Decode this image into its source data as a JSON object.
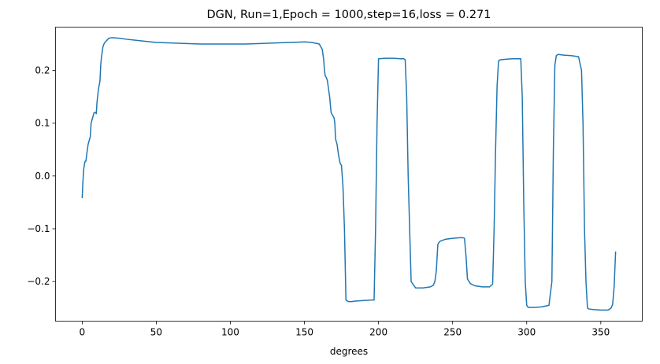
{
  "chart_data": {
    "type": "line",
    "title": "DGN, Run=1,Epoch = 1000,step=16,loss = 0.271",
    "xlabel": "degrees",
    "ylabel": "",
    "xlim": [
      -18,
      378
    ],
    "ylim": [
      -0.275,
      0.282
    ],
    "grid": false,
    "x_ticks": [
      0,
      50,
      100,
      150,
      200,
      250,
      300,
      350
    ],
    "x_tick_labels": [
      "0",
      "50",
      "100",
      "150",
      "200",
      "250",
      "300",
      "350"
    ],
    "y_ticks": [
      -0.2,
      -0.1,
      0.0,
      0.1,
      0.2
    ],
    "y_tick_labels": [
      "−0.2",
      "−0.1",
      "0.0",
      "0.1",
      "0.2"
    ],
    "series": [
      {
        "color": "#1f77b4",
        "x": [
          0,
          0.5,
          1,
          1.5,
          2,
          2.5,
          3,
          4,
          5,
          5.5,
          6,
          7,
          8,
          9,
          9.5,
          10,
          11,
          12,
          12.5,
          13,
          14,
          15,
          16,
          17,
          18,
          20,
          25,
          30,
          40,
          50,
          60,
          70,
          80,
          90,
          100,
          110,
          120,
          130,
          140,
          150,
          155,
          160,
          162,
          163,
          163.5,
          164,
          165,
          165.5,
          166,
          167,
          168,
          169,
          170,
          170.5,
          171,
          172,
          173,
          174,
          174.5,
          175,
          176,
          177,
          178,
          179,
          180,
          180.5,
          181,
          182,
          184,
          190,
          195,
          197,
          198,
          199,
          200,
          205,
          210,
          215,
          217,
          218,
          219,
          220,
          221,
          222,
          225,
          230,
          235,
          237,
          238,
          239,
          240,
          241,
          242,
          245,
          250,
          255,
          257,
          258,
          259,
          260,
          262,
          265,
          270,
          275,
          277,
          278,
          279,
          280,
          281,
          282,
          285,
          290,
          295,
          296,
          297,
          298,
          299,
          300,
          301,
          302,
          305,
          310,
          315,
          317,
          318,
          319,
          320,
          321,
          322,
          325,
          330,
          335,
          337,
          338,
          339,
          340,
          341,
          342,
          345,
          350,
          355,
          357,
          358,
          359,
          360
        ],
        "y": [
          -0.042,
          -0.01,
          0.012,
          0.022,
          0.028,
          0.028,
          0.04,
          0.06,
          0.07,
          0.075,
          0.1,
          0.11,
          0.12,
          0.12,
          0.118,
          0.14,
          0.165,
          0.18,
          0.21,
          0.225,
          0.245,
          0.252,
          0.255,
          0.258,
          0.261,
          0.262,
          0.261,
          0.259,
          0.256,
          0.253,
          0.252,
          0.251,
          0.25,
          0.25,
          0.25,
          0.25,
          0.251,
          0.252,
          0.253,
          0.254,
          0.253,
          0.25,
          0.24,
          0.22,
          0.2,
          0.19,
          0.185,
          0.18,
          0.17,
          0.15,
          0.12,
          0.115,
          0.11,
          0.1,
          0.07,
          0.06,
          0.04,
          0.025,
          0.022,
          0.02,
          -0.02,
          -0.1,
          -0.235,
          -0.237,
          -0.238,
          -0.238,
          -0.238,
          -0.238,
          -0.237,
          -0.236,
          -0.235,
          -0.235,
          -0.1,
          0.1,
          0.222,
          0.223,
          0.223,
          0.222,
          0.222,
          0.22,
          0.15,
          0.0,
          -0.1,
          -0.2,
          -0.212,
          -0.212,
          -0.21,
          -0.207,
          -0.2,
          -0.18,
          -0.13,
          -0.125,
          -0.123,
          -0.12,
          -0.118,
          -0.117,
          -0.117,
          -0.118,
          -0.15,
          -0.195,
          -0.204,
          -0.208,
          -0.21,
          -0.21,
          -0.205,
          -0.1,
          0.05,
          0.17,
          0.218,
          0.22,
          0.221,
          0.222,
          0.222,
          0.222,
          0.15,
          -0.05,
          -0.2,
          -0.245,
          -0.249,
          -0.249,
          -0.249,
          -0.248,
          -0.245,
          -0.2,
          0.05,
          0.21,
          0.228,
          0.23,
          0.23,
          0.229,
          0.228,
          0.226,
          0.2,
          0.1,
          -0.1,
          -0.2,
          -0.25,
          -0.252,
          -0.253,
          -0.254,
          -0.254,
          -0.25,
          -0.243,
          -0.21,
          -0.143
        ]
      }
    ]
  }
}
